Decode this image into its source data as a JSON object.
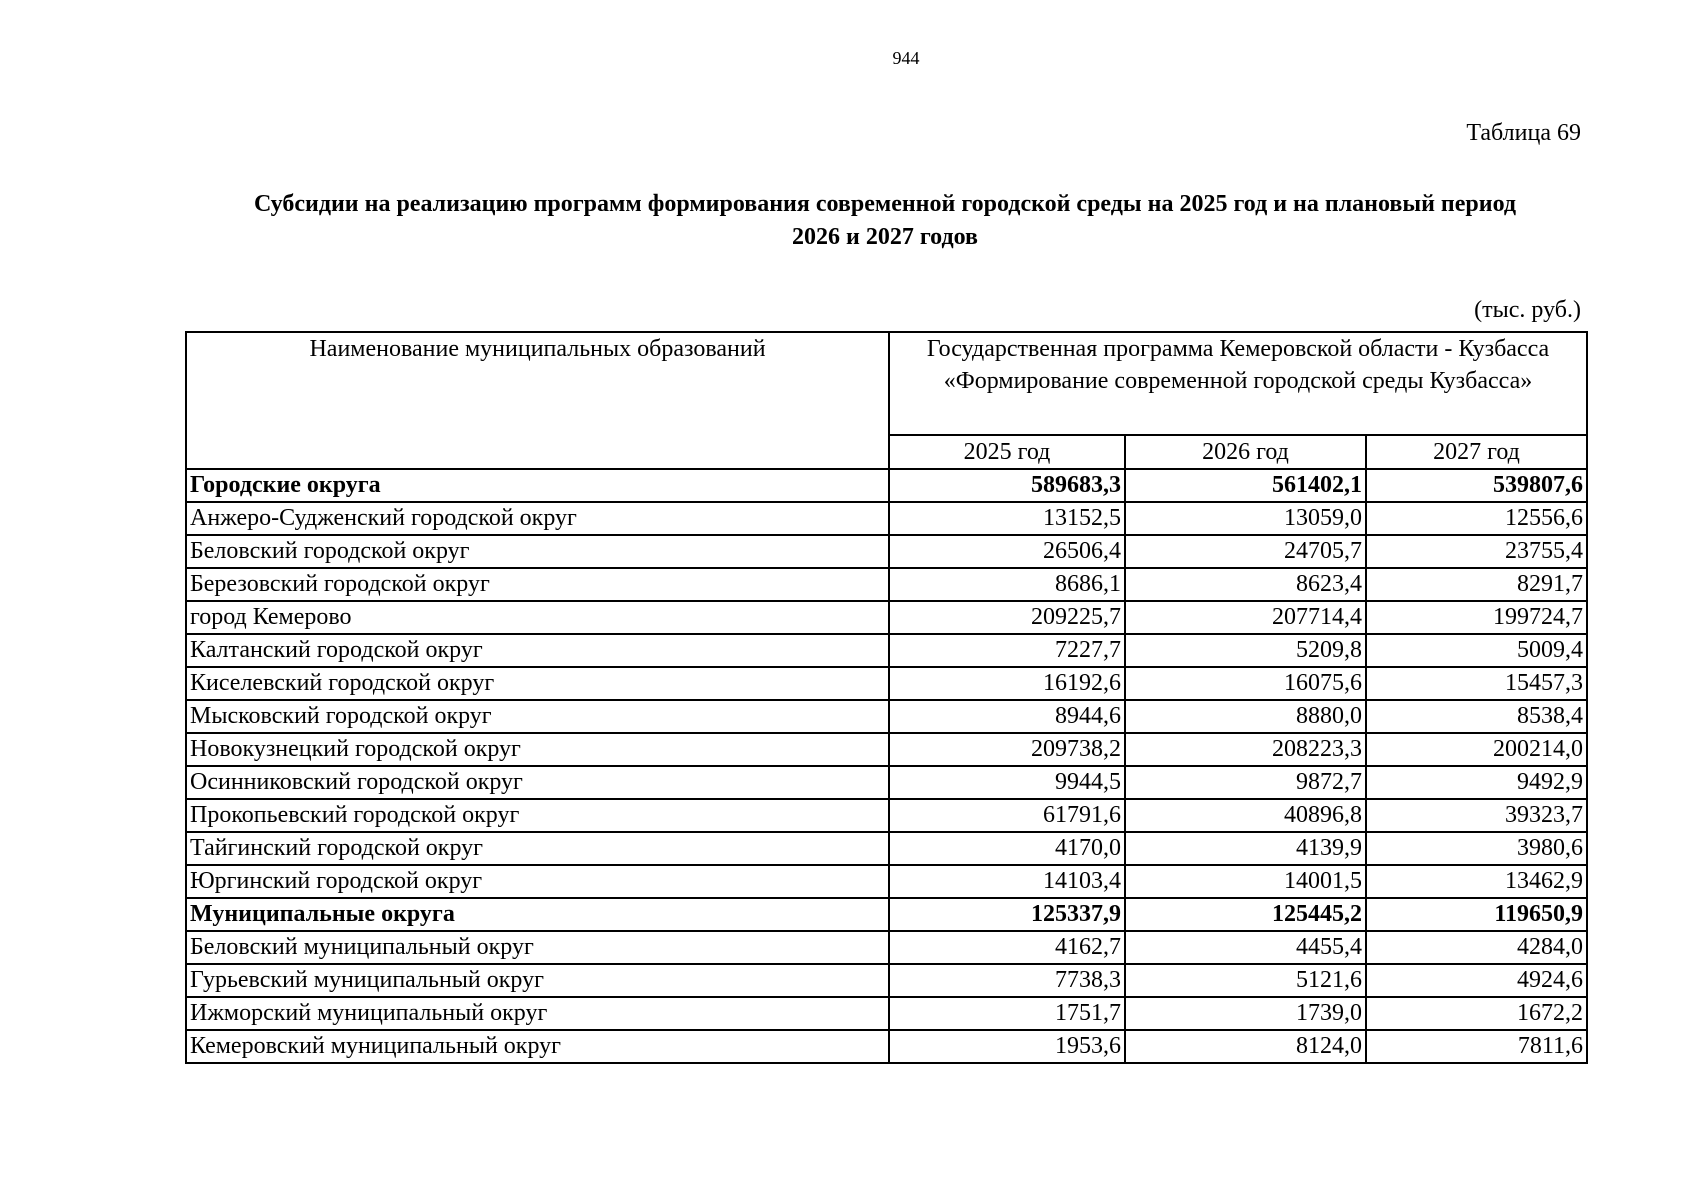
{
  "page_number": "944",
  "table_label": "Таблица 69",
  "title_lines": [
    "Субсидии на реализацию программ формирования современной городской среды на 2025 год и на плановый период",
    "2026 и 2027 годов"
  ],
  "units": "(тыс. руб.)",
  "table": {
    "name_header": "Наименование муниципальных образований",
    "program_header_lines": [
      "Государственная программа Кемеровской области - Кузбасса",
      "«Формирование современной городской среды Кузбасса»"
    ],
    "year_headers": [
      "2025 год",
      "2026 год",
      "2027 год"
    ],
    "rows": [
      {
        "name": "Городские округа",
        "values": [
          "589683,3",
          "561402,1",
          "539807,6"
        ],
        "bold": true
      },
      {
        "name": "Анжеро-Судженский городской округ",
        "values": [
          "13152,5",
          "13059,0",
          "12556,6"
        ]
      },
      {
        "name": "Беловский городской округ",
        "values": [
          "26506,4",
          "24705,7",
          "23755,4"
        ]
      },
      {
        "name": "Березовский городской округ",
        "values": [
          "8686,1",
          "8623,4",
          "8291,7"
        ]
      },
      {
        "name": "город Кемерово",
        "values": [
          "209225,7",
          "207714,4",
          "199724,7"
        ]
      },
      {
        "name": "Калтанский городской округ",
        "values": [
          "7227,7",
          "5209,8",
          "5009,4"
        ]
      },
      {
        "name": "Киселевский городской округ",
        "values": [
          "16192,6",
          "16075,6",
          "15457,3"
        ]
      },
      {
        "name": "Мысковский городской округ",
        "values": [
          "8944,6",
          "8880,0",
          "8538,4"
        ]
      },
      {
        "name": "Новокузнецкий городской округ",
        "values": [
          "209738,2",
          "208223,3",
          "200214,0"
        ]
      },
      {
        "name": "Осинниковский городской округ",
        "values": [
          "9944,5",
          "9872,7",
          "9492,9"
        ]
      },
      {
        "name": "Прокопьевский городской округ",
        "values": [
          "61791,6",
          "40896,8",
          "39323,7"
        ]
      },
      {
        "name": "Тайгинский городской округ",
        "values": [
          "4170,0",
          "4139,9",
          "3980,6"
        ]
      },
      {
        "name": "Юргинский городской округ",
        "values": [
          "14103,4",
          "14001,5",
          "13462,9"
        ]
      },
      {
        "name": "Муниципальные округа",
        "values": [
          "125337,9",
          "125445,2",
          "119650,9"
        ],
        "bold": true
      },
      {
        "name": "Беловский муниципальный округ",
        "values": [
          "4162,7",
          "4455,4",
          "4284,0"
        ]
      },
      {
        "name": "Гурьевский муниципальный округ",
        "values": [
          "7738,3",
          "5121,6",
          "4924,6"
        ]
      },
      {
        "name": "Ижморский муниципальный округ",
        "values": [
          "1751,7",
          "1739,0",
          "1672,2"
        ]
      },
      {
        "name": "Кемеровский муниципальный округ",
        "values": [
          "1953,6",
          "8124,0",
          "7811,6"
        ]
      }
    ]
  }
}
